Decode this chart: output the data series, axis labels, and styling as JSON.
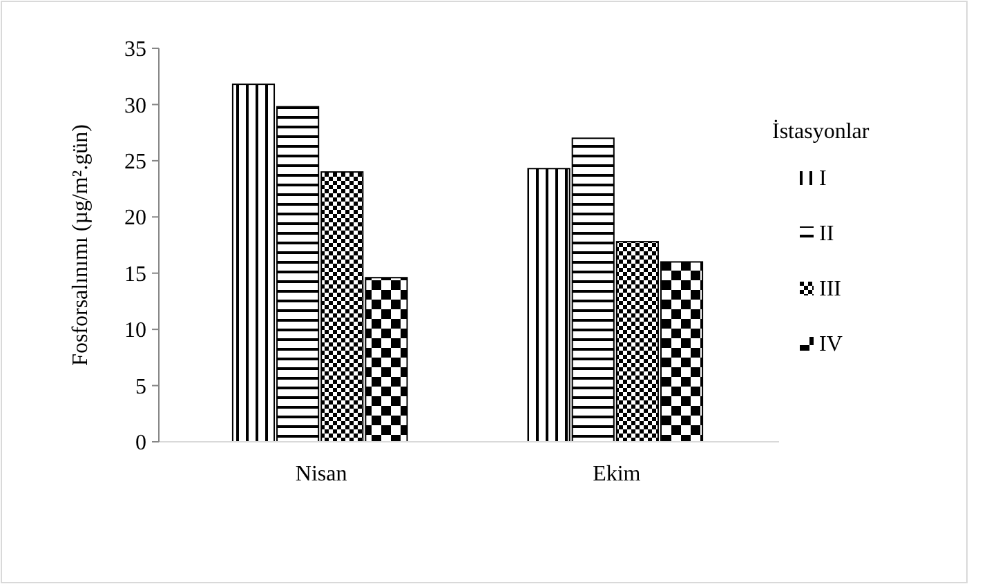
{
  "chart_data": {
    "type": "bar",
    "ylabel": "Fosforsalınımı (µg/m².gün)",
    "legend_title": "İstasyonlar",
    "categories": [
      "Nisan",
      "Ekim"
    ],
    "series": [
      {
        "name": "I",
        "color": "#000000",
        "values": [
          31.8,
          24.3
        ]
      },
      {
        "name": "II",
        "color": "#000000",
        "values": [
          29.8,
          27.0
        ]
      },
      {
        "name": "III",
        "color": "#000000",
        "values": [
          24.0,
          17.8
        ]
      },
      {
        "name": "IV",
        "color": "#000000",
        "values": [
          14.6,
          16.0
        ]
      }
    ],
    "ylim": [
      0,
      35
    ],
    "yticks": [
      0,
      5,
      10,
      15,
      20,
      25,
      30,
      35
    ],
    "grid": false,
    "legend": "right"
  }
}
